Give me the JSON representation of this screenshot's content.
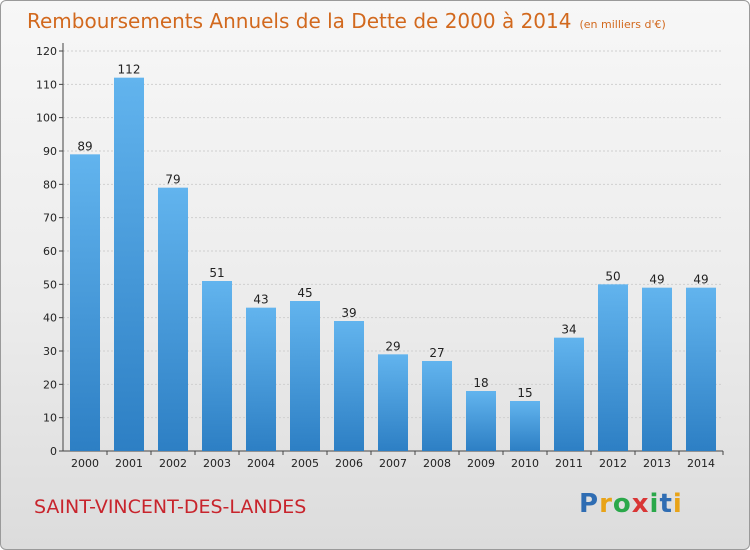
{
  "title": "Remboursements Annuels de la Dette de 2000 à 2014",
  "subtitle": "(en milliers d'€)",
  "commune": "SAINT-VINCENT-DES-LANDES",
  "logo": {
    "text": "Proxiti",
    "colors": [
      "#2f6db3",
      "#e8a317",
      "#2aa84a",
      "#d93636",
      "#2aa84a",
      "#2f6db3",
      "#e8a317"
    ]
  },
  "colors": {
    "bar_top": "#62b4ee",
    "bar_bottom": "#2d7fc4",
    "title": "#d2691e",
    "commune": "#c8242c"
  },
  "chart_data": {
    "type": "bar",
    "title": "Remboursements Annuels de la Dette de 2000 à 2014",
    "subtitle": "(en milliers d'€)",
    "categories": [
      "2000",
      "2001",
      "2002",
      "2003",
      "2004",
      "2005",
      "2006",
      "2007",
      "2008",
      "2009",
      "2010",
      "2011",
      "2012",
      "2013",
      "2014"
    ],
    "values": [
      89,
      112,
      79,
      51,
      43,
      45,
      39,
      29,
      27,
      18,
      15,
      34,
      50,
      49,
      49
    ],
    "ylim": [
      0,
      120
    ],
    "yticks": [
      0,
      10,
      20,
      30,
      40,
      50,
      60,
      70,
      80,
      90,
      100,
      110,
      120
    ],
    "xlabel": "",
    "ylabel": "",
    "grid": true
  }
}
